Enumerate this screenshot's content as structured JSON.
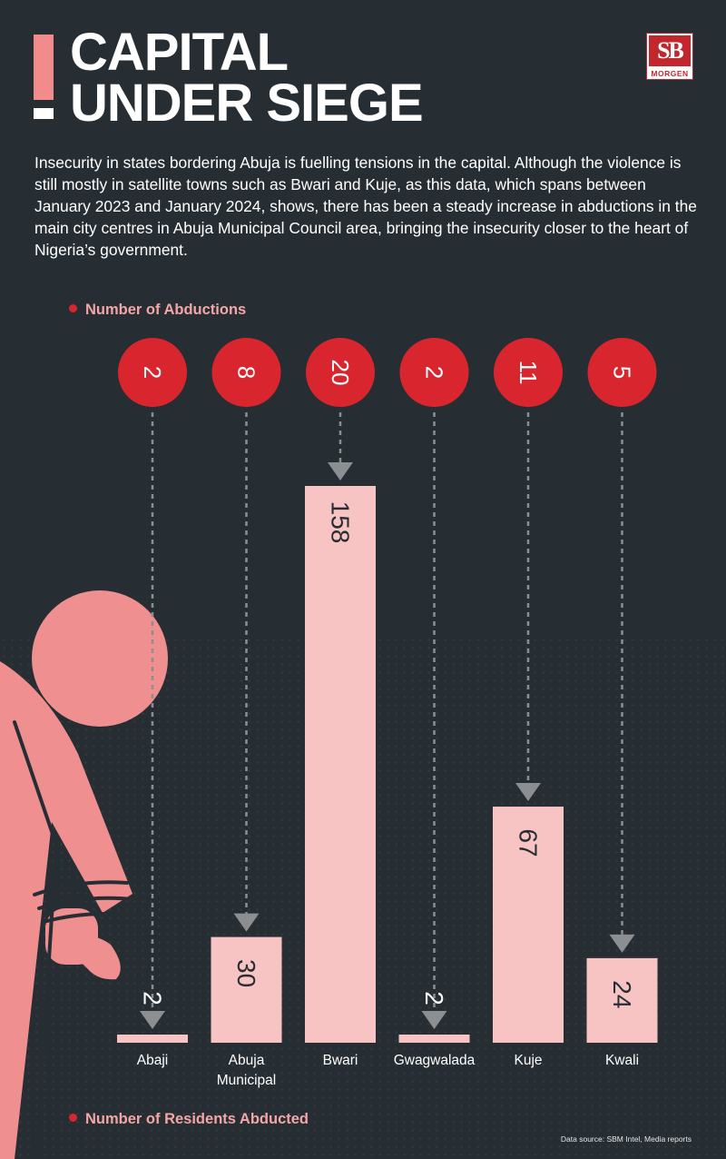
{
  "header": {
    "title_line1": "CAPITAL",
    "title_line2": "UNDER SIEGE",
    "logo_text": "SB",
    "logo_subtext": "MORGEN"
  },
  "intro_text": "Insecurity in states bordering Abuja is fuelling tensions in the capital. Although the violence is still mostly in satellite towns such as Bwari and Kuje, as this data, which spans between January 2023 and January 2024, shows, there has been a steady increase in abductions in the main city centres in Abuja Municipal Council area, bringing the insecurity closer to the heart of Nigeria’s government.",
  "legend": {
    "abductions": "Number of Abductions",
    "residents": "Number of Residents Abducted"
  },
  "source": "Data source: SBM Intel, Media reports",
  "colors": {
    "background": "#272e33",
    "bar": "#f7c3c3",
    "circle": "#d9262e",
    "figure": "#f08f8f",
    "legend_text": "#f4a6a6",
    "arrow": "#8c8f92"
  },
  "chart_data": {
    "type": "bar",
    "categories": [
      "Abaji",
      "Abuja Municipal",
      "Bwari",
      "Gwagwalada",
      "Kuje",
      "Kwali"
    ],
    "category_lines": [
      [
        "Abaji"
      ],
      [
        "Abuja",
        "Municipal"
      ],
      [
        "Bwari"
      ],
      [
        "Gwagwalada"
      ],
      [
        "Kuje"
      ],
      [
        "Kwali"
      ]
    ],
    "series": [
      {
        "name": "Number of Residents Abducted",
        "values": [
          2,
          30,
          158,
          2,
          67,
          24
        ]
      },
      {
        "name": "Number of Abductions",
        "values": [
          2,
          8,
          20,
          2,
          11,
          5
        ]
      }
    ],
    "ylim": [
      0,
      158
    ]
  }
}
